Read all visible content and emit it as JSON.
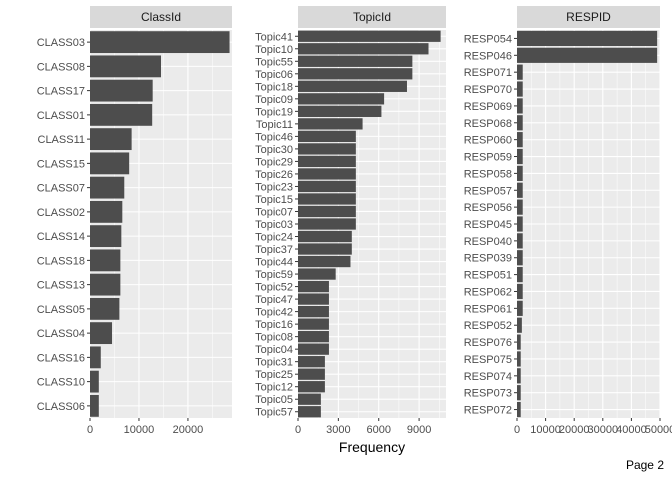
{
  "page_label": "Page 2",
  "colors": {
    "bar": "#4d4d4d",
    "panel_bg": "#ebebeb",
    "grid": "#ffffff",
    "strip_bg": "#d9d9d9"
  },
  "chart_data": {
    "type": "bar",
    "orientation": "horizontal",
    "xlabel": "Frequency",
    "grid": true,
    "panels": [
      {
        "title": "ClassId",
        "xlim": [
          0,
          29000
        ],
        "xticks": [
          0,
          10000,
          20000
        ],
        "xtick_labels": [
          "0",
          "10000",
          "20000"
        ],
        "categories": [
          "CLASS03",
          "CLASS08",
          "CLASS17",
          "CLASS01",
          "CLASS11",
          "CLASS15",
          "CLASS07",
          "CLASS02",
          "CLASS14",
          "CLASS18",
          "CLASS13",
          "CLASS05",
          "CLASS04",
          "CLASS16",
          "CLASS10",
          "CLASS06"
        ],
        "values": [
          28500,
          14500,
          12800,
          12700,
          8500,
          8000,
          7000,
          6600,
          6400,
          6200,
          6200,
          6000,
          4500,
          2200,
          1800,
          1800
        ]
      },
      {
        "title": "TopicId",
        "xlim": [
          0,
          11000
        ],
        "xticks": [
          0,
          3000,
          6000,
          9000
        ],
        "xtick_labels": [
          "0",
          "3000",
          "6000",
          "9000"
        ],
        "categories": [
          "Topic41",
          "Topic10",
          "Topic55",
          "Topic06",
          "Topic18",
          "Topic09",
          "Topic19",
          "Topic11",
          "Topic46",
          "Topic30",
          "Topic29",
          "Topic26",
          "Topic23",
          "Topic15",
          "Topic07",
          "Topic03",
          "Topic24",
          "Topic37",
          "Topic44",
          "Topic59",
          "Topic52",
          "Topic47",
          "Topic42",
          "Topic16",
          "Topic08",
          "Topic04",
          "Topic31",
          "Topic25",
          "Topic12",
          "Topic05",
          "Topic57"
        ],
        "values": [
          10600,
          9700,
          8500,
          8500,
          8100,
          6400,
          6200,
          4800,
          4300,
          4300,
          4300,
          4300,
          4300,
          4300,
          4300,
          4300,
          4000,
          4000,
          3900,
          2800,
          2300,
          2300,
          2300,
          2300,
          2300,
          2300,
          2000,
          2000,
          2000,
          1700,
          1700
        ]
      },
      {
        "title": "RESPID",
        "xlim": [
          0,
          50000
        ],
        "xticks": [
          0,
          10000,
          20000,
          30000,
          40000,
          50000
        ],
        "xtick_labels": [
          "0",
          "10000",
          "20000",
          "30000",
          "40000",
          "50000"
        ],
        "categories": [
          "RESP054",
          "RESP046",
          "RESP071",
          "RESP070",
          "RESP069",
          "RESP068",
          "RESP060",
          "RESP059",
          "RESP058",
          "RESP057",
          "RESP056",
          "RESP045",
          "RESP040",
          "RESP039",
          "RESP051",
          "RESP062",
          "RESP061",
          "RESP052",
          "RESP076",
          "RESP075",
          "RESP074",
          "RESP073",
          "RESP072"
        ],
        "values": [
          49000,
          49000,
          2000,
          2000,
          2000,
          2000,
          2000,
          2000,
          2000,
          2000,
          2000,
          2000,
          2000,
          2000,
          2000,
          2000,
          2000,
          1700,
          1300,
          1300,
          1300,
          1300,
          1300
        ]
      }
    ]
  }
}
